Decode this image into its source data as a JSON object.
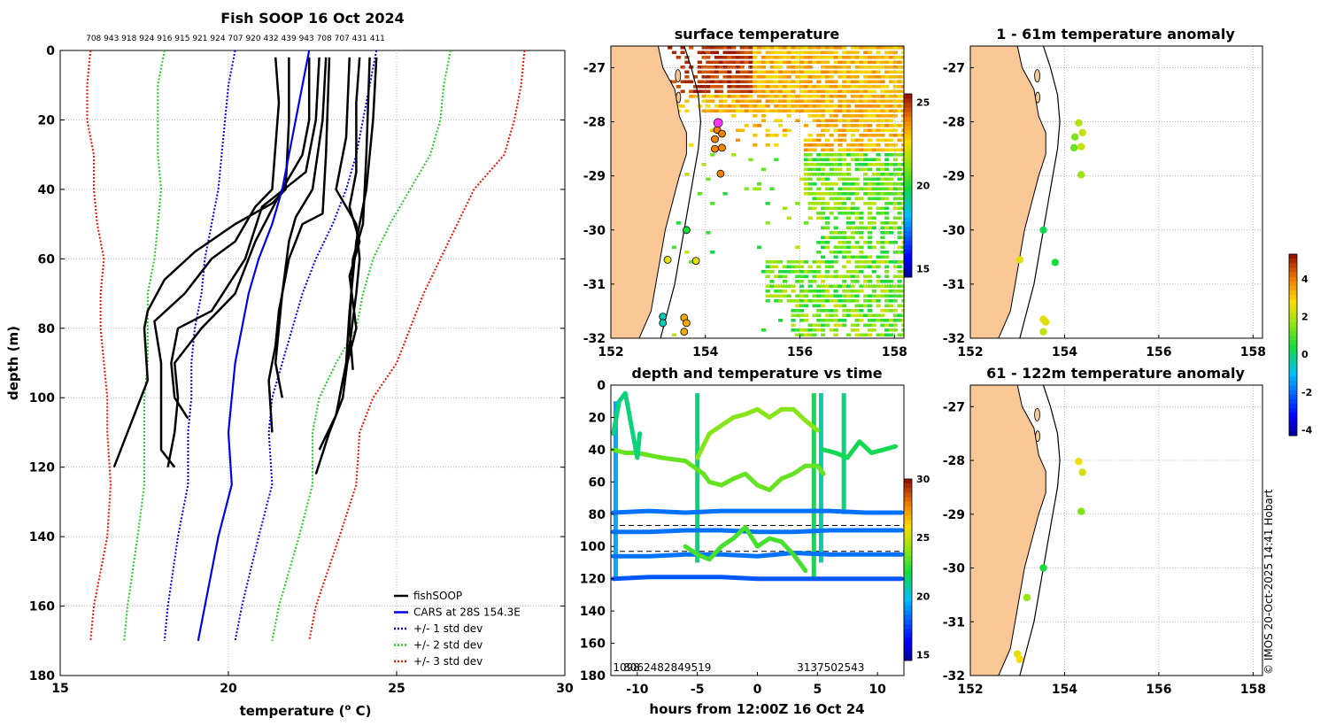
{
  "credit": "© IMOS 20-Oct-2025 14:41 Hobart",
  "chart_data": [
    {
      "id": "profile",
      "type": "line",
      "title": "Fish SOOP 16 Oct 2024",
      "xlabel": "temperature (° C)",
      "xlabel_main": "temperature (",
      "xlabel_sup": "o",
      "xlabel_end": " C)",
      "ylabel": "depth (m)",
      "xlim": [
        15,
        30
      ],
      "ylim": [
        180,
        0
      ],
      "xticks": [
        15,
        20,
        25,
        30
      ],
      "yticks": [
        0,
        20,
        40,
        60,
        80,
        100,
        120,
        140,
        160,
        180
      ],
      "top_label": "708 943 918 924 916 915 921 924 707 920 432 439 943 708 707 431 411",
      "legend": [
        "fishSOOP",
        "CARS at 28S 154.3E",
        "+/- 1 std dev",
        "+/- 2 std dev",
        "+/- 3 std dev"
      ],
      "legend_colors": [
        "#000000",
        "#0000ee",
        "#0000ee",
        "#22cc22",
        "#ee1100"
      ],
      "cars": {
        "depth": [
          0,
          10,
          20,
          30,
          40,
          50,
          60,
          70,
          80,
          90,
          100,
          110,
          125,
          140,
          160,
          170
        ],
        "mean": [
          22.4,
          22.2,
          22.0,
          21.8,
          21.6,
          21.3,
          20.9,
          20.6,
          20.4,
          20.2,
          20.1,
          20.0,
          20.1,
          19.7,
          19.3,
          19.1
        ],
        "std1_low": [
          20.2,
          20.0,
          19.9,
          19.8,
          19.7,
          19.5,
          19.3,
          19.2,
          19.0,
          18.9,
          18.9,
          18.8,
          18.8,
          18.5,
          18.2,
          18.1
        ],
        "std1_high": [
          24.4,
          24.2,
          24.0,
          23.8,
          23.5,
          23.1,
          22.6,
          22.2,
          21.9,
          21.6,
          21.3,
          21.2,
          21.3,
          20.9,
          20.4,
          20.2
        ],
        "std2_low": [
          18.1,
          17.9,
          17.9,
          17.9,
          18.0,
          17.9,
          17.8,
          17.6,
          17.6,
          17.6,
          17.5,
          17.5,
          17.5,
          17.3,
          17.0,
          16.9
        ],
        "std2_high": [
          26.6,
          26.4,
          26.3,
          26.0,
          25.4,
          24.8,
          24.3,
          24.0,
          23.8,
          23.2,
          22.7,
          22.5,
          22.5,
          22.1,
          21.5,
          21.3
        ],
        "std3_low": [
          15.9,
          15.8,
          15.8,
          16.0,
          16.0,
          16.1,
          16.3,
          16.2,
          16.2,
          16.3,
          16.4,
          16.4,
          16.5,
          16.4,
          16.0,
          15.9
        ],
        "std3_high": [
          28.8,
          28.7,
          28.5,
          28.2,
          27.3,
          26.8,
          26.3,
          25.8,
          25.4,
          25.0,
          24.3,
          23.9,
          23.8,
          23.3,
          22.6,
          22.4
        ]
      },
      "fish_profiles": [
        {
          "depth": [
            2,
            20,
            30,
            40,
            55,
            70,
            80,
            90,
            100,
            110,
            120
          ],
          "temp": [
            22.4,
            22.4,
            22.2,
            21.6,
            20.8,
            20.2,
            19.2,
            18.4,
            18.5,
            18.4,
            18.2
          ]
        },
        {
          "depth": [
            2,
            20,
            35,
            45,
            60,
            75,
            80,
            90,
            100,
            106
          ],
          "temp": [
            22.7,
            22.6,
            22.3,
            21.0,
            20.5,
            19.5,
            18.5,
            18.3,
            18.4,
            18.8
          ]
        },
        {
          "depth": [
            2,
            15,
            40,
            45,
            55,
            60,
            70,
            78,
            90,
            115,
            120
          ],
          "temp": [
            21.4,
            21.5,
            21.3,
            20.8,
            20.2,
            19.5,
            18.7,
            17.8,
            18.0,
            18.0,
            18.4
          ]
        },
        {
          "depth": [
            2,
            20,
            40,
            44,
            50,
            58,
            66,
            75,
            80,
            95,
            120
          ],
          "temp": [
            21.8,
            21.8,
            21.7,
            21.3,
            20.2,
            19.0,
            18.1,
            17.6,
            17.5,
            17.6,
            16.6
          ]
        },
        {
          "depth": [
            2,
            30,
            47,
            50,
            60,
            75,
            85,
            95,
            110
          ],
          "temp": [
            23.0,
            22.9,
            22.8,
            22.2,
            21.8,
            21.5,
            21.4,
            21.2,
            21.3
          ]
        },
        {
          "depth": [
            2,
            20,
            40,
            48,
            55,
            70,
            90,
            100
          ],
          "temp": [
            22.9,
            22.8,
            22.5,
            22.0,
            21.8,
            21.6,
            21.4,
            21.6
          ]
        },
        {
          "depth": [
            2,
            25,
            40,
            50,
            60,
            70,
            85,
            100,
            110,
            122
          ],
          "temp": [
            23.6,
            23.5,
            23.2,
            23.8,
            23.9,
            23.8,
            23.6,
            23.4,
            23.0,
            22.6
          ]
        },
        {
          "depth": [
            2,
            15,
            35,
            45,
            55,
            65,
            80,
            95,
            105,
            115
          ],
          "temp": [
            23.9,
            23.8,
            23.8,
            23.6,
            23.9,
            23.6,
            23.8,
            23.4,
            23.2,
            22.7
          ]
        },
        {
          "depth": [
            2,
            20,
            40,
            55,
            75,
            90,
            100
          ],
          "temp": [
            24.4,
            24.3,
            24.1,
            23.8,
            23.6,
            23.5,
            23.3
          ]
        },
        {
          "depth": [
            2,
            30,
            50,
            60,
            80,
            92
          ],
          "temp": [
            24.2,
            24.1,
            24.0,
            23.7,
            23.6,
            23.7
          ]
        }
      ]
    },
    {
      "id": "sst-map",
      "type": "heatmap",
      "title": "surface temperature",
      "xlim": [
        152,
        158.2
      ],
      "ylim": [
        -32,
        -26.6
      ],
      "xticks": [
        152,
        154,
        156,
        158
      ],
      "yticks": [
        -27,
        -28,
        -29,
        -30,
        -31,
        -32
      ],
      "colorbar_ticks": [
        25,
        20,
        15
      ],
      "colorbar_range": [
        14.5,
        25.5
      ],
      "stations": [
        {
          "lon": 154.25,
          "lat": -28.15,
          "temp": 24.0
        },
        {
          "lon": 154.35,
          "lat": -28.22,
          "temp": 24.0
        },
        {
          "lon": 154.2,
          "lat": -28.32,
          "temp": 24.0
        },
        {
          "lon": 154.2,
          "lat": -28.5,
          "temp": 24.0
        },
        {
          "lon": 154.35,
          "lat": -28.48,
          "temp": 24.0
        },
        {
          "lon": 154.32,
          "lat": -28.96,
          "temp": 24.0
        },
        {
          "lon": 153.6,
          "lat": -30.0,
          "temp": 20.0
        },
        {
          "lon": 153.2,
          "lat": -30.55,
          "temp": 22.5
        },
        {
          "lon": 153.8,
          "lat": -30.57,
          "temp": 22.5
        },
        {
          "lon": 153.1,
          "lat": -31.6,
          "temp": 19.0
        },
        {
          "lon": 153.1,
          "lat": -31.72,
          "temp": 19.0
        },
        {
          "lon": 153.55,
          "lat": -31.62,
          "temp": 23.5
        },
        {
          "lon": 153.6,
          "lat": -31.72,
          "temp": 23.5
        },
        {
          "lon": 153.55,
          "lat": -31.88,
          "temp": 23.5
        }
      ],
      "latest_position": {
        "lon": 154.27,
        "lat": -28.02
      }
    },
    {
      "id": "anom-top",
      "type": "scatter",
      "title": "1 - 61m temperature anomaly",
      "xlim": [
        152,
        158.2
      ],
      "ylim": [
        -32,
        -26.6
      ],
      "xticks": [
        152,
        154,
        156,
        158
      ],
      "yticks": [
        -27,
        -28,
        -29,
        -30,
        -31,
        -32
      ],
      "points": [
        {
          "lon": 154.3,
          "lat": -28.02,
          "anom": 2.0
        },
        {
          "lon": 154.22,
          "lat": -28.28,
          "anom": 1.5
        },
        {
          "lon": 154.38,
          "lat": -28.2,
          "anom": 2.3
        },
        {
          "lon": 154.2,
          "lat": -28.48,
          "anom": 1.3
        },
        {
          "lon": 154.35,
          "lat": -28.46,
          "anom": 2.3
        },
        {
          "lon": 154.35,
          "lat": -28.98,
          "anom": 1.8
        },
        {
          "lon": 153.55,
          "lat": -30.0,
          "anom": 0.3
        },
        {
          "lon": 153.05,
          "lat": -30.55,
          "anom": 2.6
        },
        {
          "lon": 153.8,
          "lat": -30.6,
          "anom": 0.5
        },
        {
          "lon": 153.55,
          "lat": -31.65,
          "anom": 2.7
        },
        {
          "lon": 153.6,
          "lat": -31.7,
          "anom": 2.6
        },
        {
          "lon": 153.55,
          "lat": -31.88,
          "anom": 2.2
        }
      ]
    },
    {
      "id": "anom-bottom",
      "type": "scatter",
      "title": "61 - 122m temperature anomaly",
      "xlim": [
        152,
        158.2
      ],
      "ylim": [
        -32,
        -26.6
      ],
      "xticks": [
        152,
        154,
        156,
        158
      ],
      "yticks": [
        -27,
        -28,
        -29,
        -30,
        -31,
        -32
      ],
      "points": [
        {
          "lon": 154.3,
          "lat": -28.02,
          "anom": 2.8
        },
        {
          "lon": 154.38,
          "lat": -28.22,
          "anom": 2.5
        },
        {
          "lon": 154.35,
          "lat": -28.95,
          "anom": 1.5
        },
        {
          "lon": 153.55,
          "lat": -30.0,
          "anom": 0.5
        },
        {
          "lon": 153.2,
          "lat": -30.55,
          "anom": 1.8
        },
        {
          "lon": 153.0,
          "lat": -31.6,
          "anom": 2.6
        },
        {
          "lon": 153.05,
          "lat": -31.7,
          "anom": 2.9
        }
      ],
      "colorbar_ticks": [
        4,
        2,
        0,
        -2,
        -4
      ],
      "colorbar_range": [
        -4.3,
        5.3
      ]
    },
    {
      "id": "time-depth",
      "type": "scatter",
      "title": "depth and temperature vs time",
      "xlabel": "hours from 12:00Z 16 Oct 24",
      "xlim": [
        -12.2,
        12.2
      ],
      "ylim": [
        180,
        0
      ],
      "xticks": [
        -10,
        -5,
        0,
        5,
        10
      ],
      "yticks": [
        0,
        20,
        40,
        60,
        80,
        100,
        120,
        140,
        160,
        180
      ],
      "colorbar_ticks": [
        30,
        25,
        20,
        15
      ],
      "colorbar_range": [
        14.5,
        30
      ],
      "bottom_labels": [
        {
          "x": -10.9,
          "text": "1098"
        },
        {
          "x": -7.5,
          "text": "8062482849519"
        },
        {
          "x": 6.1,
          "text": "3137502543"
        }
      ],
      "dashed_depths": [
        87,
        103
      ],
      "tracks": [
        {
          "t": [
            -12,
            -9,
            -6,
            -3,
            0,
            3,
            6,
            9,
            12
          ],
          "d": [
            79,
            78,
            79,
            78,
            78,
            78,
            78,
            79,
            79
          ],
          "temp": 18.5
        },
        {
          "t": [
            -12,
            -9,
            -6,
            -3,
            0,
            3,
            6,
            9,
            12
          ],
          "d": [
            91,
            91,
            90,
            90,
            91,
            91,
            90,
            90,
            90
          ],
          "temp": 18.5
        },
        {
          "t": [
            -12,
            -9,
            -6,
            -3,
            0,
            3,
            6,
            9,
            12
          ],
          "d": [
            106,
            106,
            105,
            105,
            106,
            104,
            105,
            105,
            105
          ],
          "temp": 18.5
        },
        {
          "t": [
            -12,
            -9,
            -6,
            -3,
            0,
            3,
            6,
            9,
            12
          ],
          "d": [
            120,
            119,
            119,
            119,
            120,
            120,
            120,
            120,
            120
          ],
          "temp": 18.0
        },
        {
          "t": [
            -12,
            -11,
            -10,
            -8,
            -6,
            -4.5,
            -4,
            -3,
            -2,
            -1,
            0,
            1,
            2,
            3,
            4,
            5,
            5.5
          ],
          "d": [
            40,
            42,
            42,
            45,
            47,
            55,
            60,
            62,
            58,
            55,
            62,
            65,
            58,
            55,
            50,
            50,
            55
          ],
          "temp": 23.5
        },
        {
          "t": [
            -5,
            -4,
            -3,
            -2,
            -1,
            0,
            1,
            2,
            3,
            4,
            5
          ],
          "d": [
            45,
            30,
            25,
            20,
            18,
            15,
            20,
            15,
            15,
            22,
            28
          ],
          "temp": 24.0
        },
        {
          "t": [
            -6,
            -5,
            -4,
            -3,
            -2,
            -1,
            0,
            1,
            2,
            3,
            4
          ],
          "d": [
            100,
            105,
            108,
            100,
            95,
            88,
            100,
            95,
            97,
            105,
            115
          ],
          "temp": 23.0
        },
        {
          "t": [
            5.5,
            6.5,
            7.5,
            8.5,
            9.5,
            10.5,
            11.5
          ],
          "d": [
            40,
            42,
            45,
            35,
            42,
            40,
            38
          ],
          "temp": 22.0
        },
        {
          "t": [
            -12,
            -11.5,
            -11,
            -10.5,
            -10,
            -9.8
          ],
          "d": [
            30,
            10,
            5,
            25,
            45,
            30
          ],
          "temp": 21.5
        }
      ],
      "casts": [
        {
          "t": -11.8,
          "d0": 10,
          "d1": 120,
          "temp": 19.5
        },
        {
          "t": -5,
          "d0": 5,
          "d1": 110,
          "temp": 21.5
        },
        {
          "t": 4.7,
          "d0": 5,
          "d1": 120,
          "temp": 22.0
        },
        {
          "t": 5.3,
          "d0": 5,
          "d1": 110,
          "temp": 21.0
        },
        {
          "t": 7.2,
          "d0": 5,
          "d1": 80,
          "temp": 21.5
        }
      ]
    }
  ]
}
